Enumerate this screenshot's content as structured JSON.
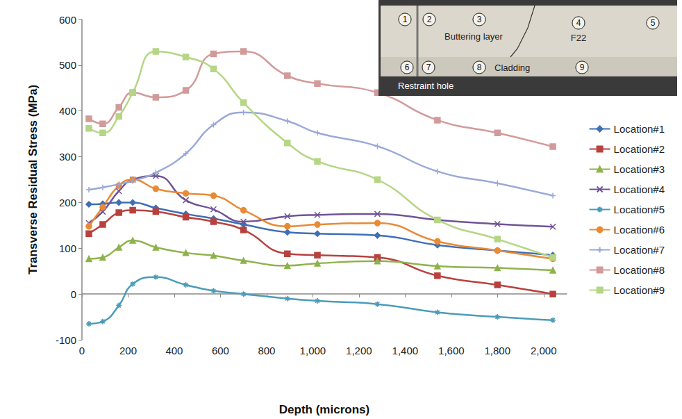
{
  "chart_data": {
    "type": "line",
    "xlabel": "Depth (microns)",
    "ylabel": "Transverse Residual Stress (MPa)",
    "x": [
      30,
      90,
      160,
      220,
      320,
      450,
      570,
      700,
      890,
      1020,
      1280,
      1540,
      1800,
      2040
    ],
    "xlim": [
      0,
      2100
    ],
    "xticks": [
      0,
      200,
      400,
      600,
      800,
      1000,
      1200,
      1400,
      1600,
      1800,
      2000
    ],
    "ylim": [
      -100,
      600
    ],
    "yticks": [
      -100,
      0,
      100,
      200,
      300,
      400,
      500,
      600
    ],
    "grid": false,
    "legend": "right",
    "series": [
      {
        "name": "Location#1",
        "color": "#3f6fb5",
        "marker": "diamond",
        "values": [
          196,
          197,
          200,
          200,
          188,
          175,
          165,
          152,
          135,
          132,
          128,
          107,
          95,
          85
        ]
      },
      {
        "name": "Location#2",
        "color": "#b8413e",
        "marker": "square",
        "values": [
          132,
          152,
          178,
          183,
          180,
          168,
          158,
          140,
          88,
          85,
          80,
          40,
          20,
          0
        ]
      },
      {
        "name": "Location#3",
        "color": "#8fb34c",
        "marker": "triangle",
        "values": [
          77,
          80,
          102,
          117,
          102,
          90,
          84,
          73,
          62,
          67,
          72,
          61,
          57,
          52
        ]
      },
      {
        "name": "Location#4",
        "color": "#6f5497",
        "marker": "x",
        "values": [
          155,
          180,
          225,
          250,
          258,
          205,
          185,
          158,
          170,
          173,
          175,
          162,
          153,
          147
        ]
      },
      {
        "name": "Location#5",
        "color": "#4a9cba",
        "marker": "asterisk",
        "values": [
          -65,
          -60,
          -25,
          22,
          37,
          20,
          7,
          0,
          -10,
          -15,
          -22,
          -40,
          -50,
          -57
        ]
      },
      {
        "name": "Location#6",
        "color": "#e98a35",
        "marker": "circle",
        "values": [
          148,
          190,
          237,
          250,
          230,
          220,
          215,
          183,
          148,
          152,
          155,
          115,
          95,
          77
        ]
      },
      {
        "name": "Location#7",
        "color": "#9aa9d8",
        "marker": "plus",
        "values": [
          228,
          233,
          240,
          247,
          265,
          307,
          370,
          397,
          378,
          352,
          323,
          268,
          242,
          215
        ]
      },
      {
        "name": "Location#8",
        "color": "#d39a9a",
        "marker": "dash",
        "values": [
          383,
          372,
          408,
          440,
          430,
          445,
          525,
          530,
          477,
          460,
          440,
          380,
          352,
          322
        ]
      },
      {
        "name": "Location#9",
        "color": "#b5d684",
        "marker": "dash",
        "values": [
          362,
          352,
          388,
          440,
          530,
          518,
          492,
          418,
          330,
          290,
          250,
          162,
          120,
          80
        ]
      }
    ],
    "annotations": [
      "1",
      "2",
      "3",
      "4",
      "5",
      "6",
      "7",
      "8",
      "9",
      "Buttering layer",
      "F22",
      "Cladding",
      "Restraint hole"
    ]
  }
}
